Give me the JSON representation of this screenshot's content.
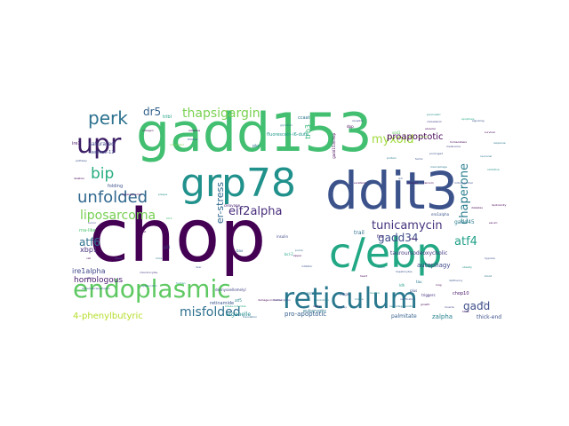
{
  "figure": {
    "words": [
      {
        "text": "gadd153",
        "color": "#43bf71"
      },
      {
        "text": "chop",
        "color": "#440154"
      },
      {
        "text": "ddit3",
        "color": "#3b528b"
      },
      {
        "text": "c/ebp",
        "color": "#22a884"
      },
      {
        "text": "grp78",
        "color": "#21918c"
      },
      {
        "text": "reticulum",
        "color": "#2a788e"
      },
      {
        "text": "endoplasmic",
        "color": "#5ec962"
      },
      {
        "text": "upr",
        "color": "#3b1c64"
      },
      {
        "text": "perk",
        "color": "#2c728e"
      },
      {
        "text": "unfolded",
        "color": "#31688e"
      },
      {
        "text": "bip",
        "color": "#27ad81"
      },
      {
        "text": "liposarcoma",
        "color": "#75d054"
      },
      {
        "text": "misfolded",
        "color": "#2d708e"
      },
      {
        "text": "tunicamycin",
        "color": "#46337e"
      },
      {
        "text": "chaperone",
        "color": "#2c7e8e"
      },
      {
        "text": "thapsigargin",
        "color": "#7ad151"
      },
      {
        "text": "myxoid",
        "color": "#9fda3a"
      },
      {
        "text": "eif2alpha",
        "color": "#472c7a"
      },
      {
        "text": "gadd34",
        "color": "#3e4c8a"
      },
      {
        "text": "atf4",
        "color": "#1fa088"
      },
      {
        "text": "gadd",
        "color": "#3d4e8a"
      },
      {
        "text": "dr5",
        "color": "#33628d"
      },
      {
        "text": "atf6",
        "color": "#2e6f8e"
      },
      {
        "text": "proapoptotic",
        "color": "#440154"
      },
      {
        "text": "er-stress",
        "color": "#30698e"
      },
      {
        "text": "homologous",
        "color": "#481b6d"
      },
      {
        "text": "ire1alpha",
        "color": "#3f4889"
      },
      {
        "text": "xbp1",
        "color": "#472d7b"
      },
      {
        "text": "4-phenylbutyric",
        "color": "#b5de2b"
      },
      {
        "text": "trb3",
        "color": "#35b779"
      },
      {
        "text": "autophagy",
        "color": "#3e4a89"
      },
      {
        "text": "tauroursodeoxycholic",
        "color": "#443a83"
      },
      {
        "text": "gadd45",
        "color": "#287c8e"
      },
      {
        "text": "pro-apoptotic",
        "color": "#355f8d"
      },
      {
        "text": "organelle",
        "color": "#23898e"
      },
      {
        "text": "retinamide",
        "color": "#3a548c"
      },
      {
        "text": "eukaryotic",
        "color": "#2a768e"
      },
      {
        "text": "chop10",
        "color": "#481467"
      },
      {
        "text": "zalpha",
        "color": "#26828e"
      },
      {
        "text": "thick-end",
        "color": "#3c508b"
      },
      {
        "text": "palmitate",
        "color": "#34608d"
      },
      {
        "text": "trail",
        "color": "#2e6e8e"
      },
      {
        "text": "fus",
        "color": "#482878"
      },
      {
        "text": "ire1",
        "color": "#481769"
      },
      {
        "text": "caspase-12",
        "color": "#3f4788"
      },
      {
        "text": "saturated",
        "color": "#414487"
      },
      {
        "text": "folding",
        "color": "#3b528b"
      },
      {
        "text": "tribl",
        "color": "#20a386"
      },
      {
        "text": "pkr",
        "color": "#2d718e"
      },
      {
        "text": "fluorescein-i6-dutp",
        "color": "#1f988b"
      },
      {
        "text": "gadd153/chop",
        "color": "#440154"
      },
      {
        "text": "ccaat",
        "color": "#2c738e"
      },
      {
        "text": "atf5",
        "color": "#25858e"
      },
      {
        "text": "rna-like",
        "color": "#4ac16d"
      },
      {
        "text": "insulin",
        "color": "#3f4788"
      },
      {
        "text": "ero1alpha",
        "color": "#3a538b"
      },
      {
        "text": "bax",
        "color": "#31688e"
      },
      {
        "text": "bcl-2",
        "color": "#23a983"
      },
      {
        "text": "triggers",
        "color": "#46307e"
      },
      {
        "text": "plus",
        "color": "#3d4d8a"
      },
      {
        "text": "ldh",
        "color": "#1f9e89"
      },
      {
        "text": "asnS",
        "color": "#2a768e"
      },
      {
        "text": "mapk",
        "color": "#3b528b"
      },
      {
        "text": "sod1",
        "color": "#5ec962"
      },
      {
        "text": "tau",
        "color": "#2a788e"
      },
      {
        "text": "dpp",
        "color": "#440154"
      },
      {
        "text": "p21",
        "color": "#3b528b"
      },
      {
        "text": "desnysoellomelyl",
        "color": "#414487"
      },
      {
        "text": "cleavage",
        "color": "#482475"
      },
      {
        "text": "neurodegeneration",
        "color": "#2a788e"
      },
      {
        "text": "hepatocytes",
        "color": "#3b528b"
      },
      {
        "text": "nutrient",
        "color": "#90d743"
      },
      {
        "text": "apoptosis",
        "color": "#22a884"
      },
      {
        "text": "hyperglycemia",
        "color": "#440154"
      },
      {
        "text": "ischemia/reperfusion",
        "color": "#3b528b"
      },
      {
        "text": "dysfunction",
        "color": "#2c728e"
      },
      {
        "text": "chondrocytes",
        "color": "#46337e"
      },
      {
        "text": "plaque",
        "color": "#21918c"
      },
      {
        "text": "collagen",
        "color": "#440154"
      },
      {
        "text": "ip3",
        "color": "#3b528b"
      },
      {
        "text": "4hpr",
        "color": "#482878"
      },
      {
        "text": "trb3-",
        "color": "#43bf71"
      },
      {
        "text": "glycation",
        "color": "#2a788e"
      },
      {
        "text": "receptor",
        "color": "#3e4989"
      },
      {
        "text": "sorafenib",
        "color": "#440154"
      },
      {
        "text": "translation",
        "color": "#31688e"
      },
      {
        "text": "stress-inducible",
        "color": "#22a884"
      },
      {
        "text": "prolonged",
        "color": "#3b528b"
      },
      {
        "text": "macrophage",
        "color": "#2a788e"
      },
      {
        "text": "cholesterol",
        "color": "#414487"
      },
      {
        "text": "alveolar",
        "color": "#440154"
      },
      {
        "text": "pancreatic",
        "color": "#21918c"
      },
      {
        "text": "adaptive",
        "color": "#440154"
      },
      {
        "text": "integrated",
        "color": "#7ad151"
      },
      {
        "text": "tribbles",
        "color": "#3b528b"
      },
      {
        "text": "damage-inducible",
        "color": "#440154"
      },
      {
        "text": "knockdown",
        "color": "#2a788e"
      },
      {
        "text": "transcription",
        "color": "#414487"
      },
      {
        "text": "injury",
        "color": "#440154"
      },
      {
        "text": "inhibitor",
        "color": "#3b528b"
      },
      {
        "text": "puma",
        "color": "#31688e"
      },
      {
        "text": "zipper",
        "color": "#440154"
      },
      {
        "text": "protein",
        "color": "#2a788e"
      },
      {
        "text": "factor",
        "color": "#3b528b"
      },
      {
        "text": "induced",
        "color": "#440154"
      },
      {
        "text": "leucine",
        "color": "#21918c"
      },
      {
        "text": "ossification",
        "color": "#3b528b"
      },
      {
        "text": "growth",
        "color": "#440154"
      },
      {
        "text": "arrest",
        "color": "#440154"
      },
      {
        "text": "deficiency",
        "color": "#3b528b"
      },
      {
        "text": "kinase",
        "color": "#2a788e"
      },
      {
        "text": "homeostasis",
        "color": "#440154"
      },
      {
        "text": "melanoma",
        "color": "#414487"
      },
      {
        "text": "calcium",
        "color": "#440154"
      },
      {
        "text": "mitochondrial",
        "color": "#3b528b"
      },
      {
        "text": "obesity",
        "color": "#21918c"
      },
      {
        "text": "diabetes",
        "color": "#440154"
      },
      {
        "text": "neuronal",
        "color": "#2a788e"
      },
      {
        "text": "hypoxia",
        "color": "#3b528b"
      },
      {
        "text": "lipotoxicity",
        "color": "#440154"
      },
      {
        "text": "oxidative",
        "color": "#21918c"
      },
      {
        "text": "signaling",
        "color": "#3b528b"
      },
      {
        "text": "survival",
        "color": "#440154"
      },
      {
        "text": "response",
        "color": "#2a788e"
      },
      {
        "text": "pathway",
        "color": "#3b528b"
      },
      {
        "text": "deletion",
        "color": "#440154"
      },
      {
        "text": "tumor",
        "color": "#414487"
      },
      {
        "text": "cell",
        "color": "#440154"
      },
      {
        "text": "death",
        "color": "#3b528b"
      },
      {
        "text": "mice",
        "color": "#2a788e"
      },
      {
        "text": "rat",
        "color": "#440154"
      },
      {
        "text": "human",
        "color": "#21918c"
      },
      {
        "text": "liver",
        "color": "#3b528b"
      },
      {
        "text": "heart",
        "color": "#440154"
      },
      {
        "text": "brain",
        "color": "#2a788e"
      },
      {
        "text": "kidney",
        "color": "#3b528b"
      },
      {
        "text": "lung",
        "color": "#440154"
      },
      {
        "text": "muscle",
        "color": "#414487"
      },
      {
        "text": "bone",
        "color": "#440154"
      },
      {
        "text": "skin",
        "color": "#3b528b"
      },
      {
        "text": "blood",
        "color": "#2a788e"
      },
      {
        "text": "serum",
        "color": "#440154"
      }
    ]
  }
}
